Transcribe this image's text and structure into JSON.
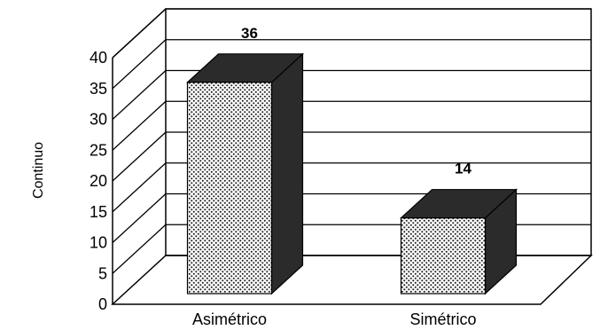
{
  "chart_data": {
    "type": "bar",
    "categories": [
      "Asimétrico",
      "Simétrico"
    ],
    "values": [
      36,
      14
    ],
    "data_labels": [
      "36",
      "14"
    ],
    "title": "",
    "xlabel": "",
    "ylabel": "Continuo",
    "ylim": [
      0,
      40
    ],
    "yticks": [
      "0",
      "5",
      "10",
      "15",
      "20",
      "25",
      "30",
      "35",
      "40"
    ],
    "grid": true,
    "legend": "none",
    "style": "3d",
    "colors": {
      "bar_front": "dotted-white",
      "bar_dark": "#2b2b2b",
      "axis": "#000000"
    }
  }
}
